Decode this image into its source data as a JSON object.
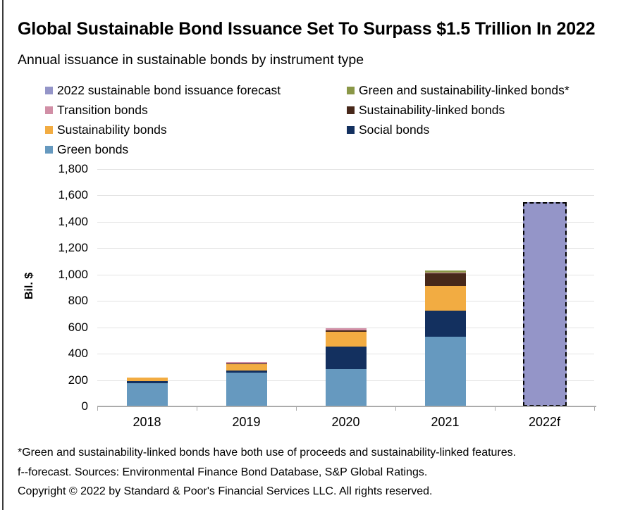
{
  "title": "Global Sustainable Bond Issuance Set To Surpass $1.5 Trillion In 2022",
  "subtitle": "Annual issuance in sustainable bonds by instrument type",
  "legend": {
    "items": [
      {
        "label": "2022 sustainable bond issuance forecast",
        "color": "#9495C8"
      },
      {
        "label": "Green and sustainability-linked bonds*",
        "color": "#8A9747"
      },
      {
        "label": "Transition bonds",
        "color": "#D18FA6"
      },
      {
        "label": "Sustainability-linked bonds",
        "color": "#47281A"
      },
      {
        "label": "Sustainability bonds",
        "color": "#F2AC42"
      },
      {
        "label": "Social bonds",
        "color": "#13305F"
      },
      {
        "label": "Green bonds",
        "color": "#6699BF"
      }
    ]
  },
  "chart_data": {
    "type": "bar",
    "stacked": true,
    "title": "Global Sustainable Bond Issuance Set To Surpass $1.5 Trillion In 2022",
    "subtitle": "Annual issuance in sustainable bonds by instrument type",
    "categories": [
      "2018",
      "2019",
      "2020",
      "2021",
      "2022f"
    ],
    "series": [
      {
        "name": "Green bonds",
        "color": "#6699BF",
        "values": [
          178,
          255,
          285,
          530,
          0
        ]
      },
      {
        "name": "Social bonds",
        "color": "#13305F",
        "values": [
          14,
          16,
          167,
          198,
          0
        ]
      },
      {
        "name": "Sustainability bonds",
        "color": "#F2AC42",
        "values": [
          28,
          50,
          113,
          187,
          0
        ]
      },
      {
        "name": "Sustainability-linked bonds",
        "color": "#47281A",
        "values": [
          0,
          6,
          12,
          97,
          0
        ]
      },
      {
        "name": "Transition bonds",
        "color": "#D18FA6",
        "values": [
          0,
          10,
          14,
          4,
          0
        ]
      },
      {
        "name": "Green and sustainability-linked bonds*",
        "color": "#8A9747",
        "values": [
          0,
          0,
          0,
          14,
          0
        ]
      },
      {
        "name": "2022 sustainable bond issuance forecast",
        "color": "#9495C8",
        "values": [
          0,
          0,
          0,
          0,
          1550
        ],
        "style": "dashed-outline"
      }
    ],
    "xlabel": "",
    "ylabel": "Bil. $",
    "ylim": [
      0,
      1800
    ],
    "ytick_step": 200,
    "grid": true,
    "legend_position": "top-left"
  },
  "footnotes": [
    "*Green and sustainability-linked bonds have both use of proceeds and sustainability-linked features.",
    "f--forecast. Sources: Environmental Finance Bond Database, S&P Global Ratings.",
    "Copyright © 2022 by Standard & Poor's Financial Services LLC. All rights reserved."
  ]
}
